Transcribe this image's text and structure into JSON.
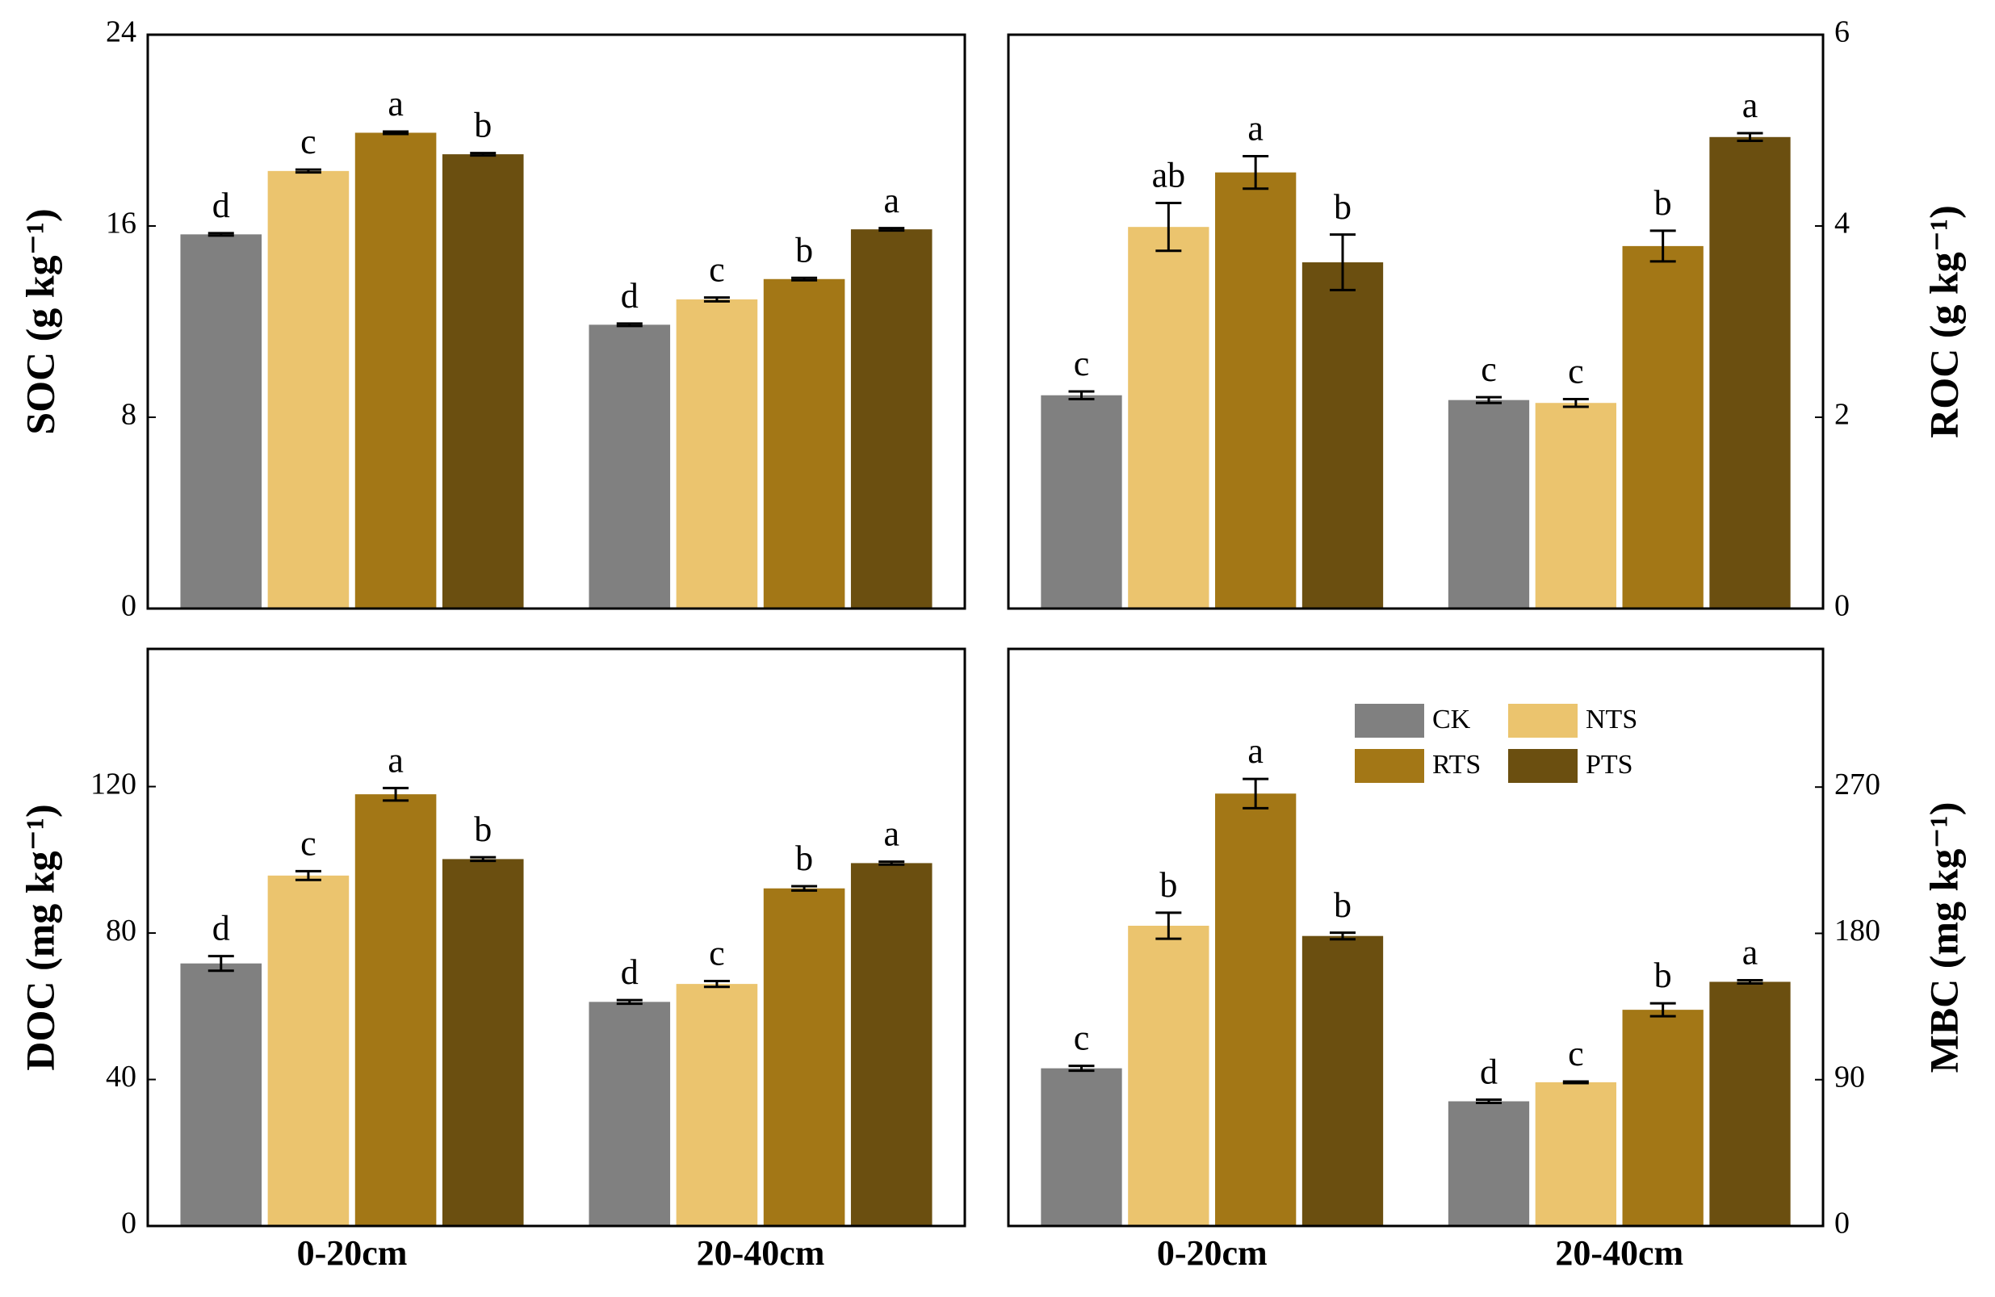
{
  "chart_data": [
    {
      "type": "bar",
      "ylabel": "SOC (g kg⁻¹)",
      "axis_side": "left",
      "ylim": [
        0,
        24
      ],
      "yticks": [
        0,
        8,
        16,
        24
      ],
      "series": [
        {
          "color": "#808080",
          "values": [
            15.65,
            11.87
          ],
          "errors": [
            0.05,
            0.05
          ],
          "labels": [
            "d",
            "d"
          ]
        },
        {
          "color": "#ebc46e",
          "values": [
            18.3,
            12.93
          ],
          "errors": [
            0.06,
            0.08
          ],
          "labels": [
            "c",
            "c"
          ]
        },
        {
          "color": "#a37716",
          "values": [
            19.9,
            13.78
          ],
          "errors": [
            0.05,
            0.05
          ],
          "labels": [
            "a",
            "b"
          ]
        },
        {
          "color": "#6b4f10",
          "values": [
            19.0,
            15.86
          ],
          "errors": [
            0.05,
            0.05
          ],
          "labels": [
            "b",
            "a"
          ]
        }
      ]
    },
    {
      "type": "bar",
      "ylabel": "ROC (g kg⁻¹)",
      "axis_side": "right",
      "ylim": [
        0,
        6
      ],
      "yticks": [
        0,
        2,
        4,
        6
      ],
      "series": [
        {
          "color": "#808080",
          "values": [
            2.23,
            2.18
          ],
          "errors": [
            0.04,
            0.03
          ],
          "labels": [
            "c",
            "c"
          ]
        },
        {
          "color": "#ebc46e",
          "values": [
            3.99,
            2.15
          ],
          "errors": [
            0.25,
            0.04
          ],
          "labels": [
            "ab",
            "c"
          ]
        },
        {
          "color": "#a37716",
          "values": [
            4.56,
            3.79
          ],
          "errors": [
            0.17,
            0.16
          ],
          "labels": [
            "a",
            "b"
          ]
        },
        {
          "color": "#6b4f10",
          "values": [
            3.62,
            4.93
          ],
          "errors": [
            0.29,
            0.04
          ],
          "labels": [
            "b",
            "a"
          ]
        }
      ]
    },
    {
      "type": "bar",
      "ylabel": "DOC (mg kg⁻¹)",
      "axis_side": "left",
      "ylim": [
        0,
        157.6
      ],
      "yticks": [
        0,
        40,
        80,
        120
      ],
      "categories": [
        "0-20cm",
        "20-40cm"
      ],
      "series": [
        {
          "color": "#808080",
          "values": [
            71.7,
            61.2
          ],
          "errors": [
            2,
            0.5
          ],
          "labels": [
            "d",
            "d"
          ]
        },
        {
          "color": "#ebc46e",
          "values": [
            95.7,
            66.1
          ],
          "errors": [
            1.2,
            0.8
          ],
          "labels": [
            "c",
            "c"
          ]
        },
        {
          "color": "#a37716",
          "values": [
            117.9,
            92.2
          ],
          "errors": [
            1.7,
            0.6
          ],
          "labels": [
            "a",
            "b"
          ]
        },
        {
          "color": "#6b4f10",
          "values": [
            100.2,
            99.1
          ],
          "errors": [
            0.5,
            0.4
          ],
          "labels": [
            "b",
            "a"
          ]
        }
      ]
    },
    {
      "type": "bar",
      "ylabel": "MBC (mg kg⁻¹)",
      "axis_side": "right",
      "ylim": [
        0,
        355
      ],
      "yticks": [
        0,
        90,
        180,
        270
      ],
      "categories": [
        "0-20cm",
        "20-40cm"
      ],
      "legend": "upper right",
      "series": [
        {
          "name": "CK",
          "color": "#808080",
          "values": [
            97,
            76.7
          ],
          "errors": [
            1.5,
            1
          ],
          "labels": [
            "c",
            "d"
          ]
        },
        {
          "name": "NTS",
          "color": "#ebc46e",
          "values": [
            184.7,
            88.4
          ],
          "errors": [
            8,
            0.5
          ],
          "labels": [
            "b",
            "c"
          ]
        },
        {
          "name": "RTS",
          "color": "#a37716",
          "values": [
            266,
            133
          ],
          "errors": [
            9,
            4
          ],
          "labels": [
            "a",
            "b"
          ]
        },
        {
          "name": "PTS",
          "color": "#6b4f10",
          "values": [
            178.4,
            150.2
          ],
          "errors": [
            2,
            1
          ],
          "labels": [
            "b",
            "a"
          ]
        }
      ]
    }
  ]
}
